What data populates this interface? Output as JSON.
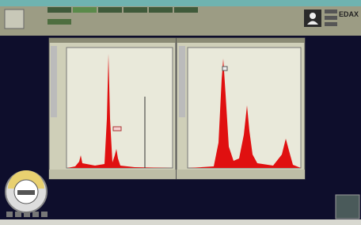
{
  "header": {
    "brand": "EDAX"
  }
}
